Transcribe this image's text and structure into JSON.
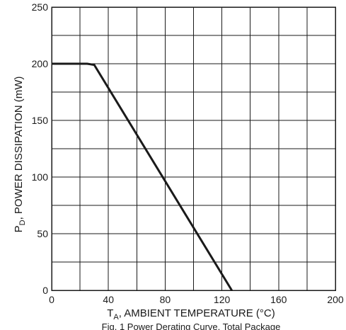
{
  "chart_data": {
    "type": "line",
    "ylabel_main": "P",
    "ylabel_sub": "D",
    "ylabel_rest": ", POWER DISSIPATION (mW)",
    "xlabel_main": "T",
    "xlabel_sub": "A",
    "xlabel_rest": ", AMBIENT TEMPERATURE (°C)",
    "caption": "Fig. 1 Power Derating Curve, Total Package",
    "xlim": [
      0,
      200
    ],
    "ylim": [
      0,
      250
    ],
    "x_ticks": [
      0,
      40,
      80,
      120,
      160,
      200
    ],
    "x_tick_labels": [
      "0",
      "40",
      "80",
      "120",
      "160",
      "200"
    ],
    "y_ticks": [
      0,
      50,
      100,
      150,
      200,
      250
    ],
    "y_tick_labels": [
      "0",
      "50",
      "100",
      "150",
      "200",
      "250"
    ],
    "x_grid_step": 20,
    "y_grid_step": 25,
    "grid": true,
    "series": [
      {
        "x": [
          0,
          25,
          30,
          127
        ],
        "y": [
          200,
          200,
          199,
          0
        ]
      }
    ]
  }
}
